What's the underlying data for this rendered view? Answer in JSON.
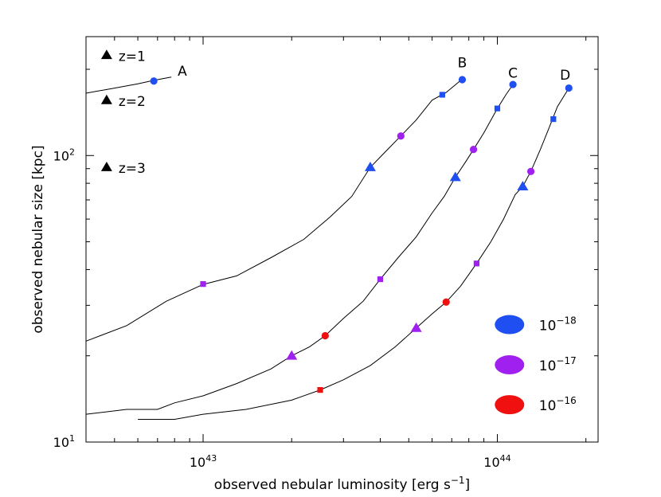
{
  "chart_data": {
    "type": "line",
    "xscale": "log",
    "yscale": "log",
    "xlim": [
      4e+42,
      2.2e+44
    ],
    "ylim": [
      10,
      260
    ],
    "xlabel": "observed nebular luminosity [erg s",
    "xlabel_sup": "−1",
    "xlabel_tail": "]",
    "ylabel": "observed nebular size [kpc]",
    "x_ticks": [
      {
        "value": 1e+43,
        "base": "10",
        "exp": "43"
      },
      {
        "value": 1e+44,
        "base": "10",
        "exp": "44"
      }
    ],
    "y_ticks": [
      {
        "value": 10,
        "base": "10",
        "exp": "1"
      },
      {
        "value": 100,
        "base": "10",
        "exp": "2"
      }
    ],
    "marker_legend": [
      {
        "label": "z=1",
        "marker": "circle",
        "x": 4.7e+42,
        "y": 224
      },
      {
        "label": "z=2",
        "marker": "square",
        "x": 4.7e+42,
        "y": 156
      },
      {
        "label": "z=3",
        "marker": "triangle",
        "x": 4.7e+42,
        "y": 91
      }
    ],
    "color_legend": [
      {
        "base": "10",
        "exp": "−18",
        "color": "#1f4ff0",
        "x": 1.1e+44,
        "y": 25.7
      },
      {
        "base": "10",
        "exp": "−17",
        "color": "#a020f0",
        "x": 1.1e+44,
        "y": 18.6
      },
      {
        "base": "10",
        "exp": "−16",
        "color": "#f01010",
        "x": 1.1e+44,
        "y": 13.5
      }
    ],
    "series": [
      {
        "name": "A",
        "label_pos": [
          8.5e+42,
          190
        ],
        "line": [
          [
            4e+42,
            165
          ],
          [
            5e+42,
            172
          ],
          [
            6e+42,
            178
          ],
          [
            6.8e+42,
            183
          ],
          [
            7.8e+42,
            188
          ]
        ],
        "markers": [
          {
            "x": 6.8e+42,
            "y": 182,
            "shape": "circle",
            "color": "#1f4ff0"
          }
        ]
      },
      {
        "name": "B",
        "label_pos": [
          7.6e+43,
          203
        ],
        "line": [
          [
            4e+42,
            22.5
          ],
          [
            5.5e+42,
            25.5
          ],
          [
            7.5e+42,
            31
          ],
          [
            1e+43,
            35.5
          ],
          [
            1.3e+43,
            38
          ],
          [
            1.7e+43,
            44
          ],
          [
            2.2e+43,
            51
          ],
          [
            2.7e+43,
            61
          ],
          [
            3.2e+43,
            72
          ],
          [
            3.7e+43,
            91
          ],
          [
            4.2e+43,
            104
          ],
          [
            4.7e+43,
            117
          ],
          [
            5.3e+43,
            133
          ],
          [
            6e+43,
            156
          ],
          [
            6.7e+43,
            166
          ],
          [
            7.6e+43,
            185
          ]
        ],
        "markers": [
          {
            "x": 1e+43,
            "y": 35.6,
            "shape": "square",
            "color": "#a020f0"
          },
          {
            "x": 3.7e+43,
            "y": 91,
            "shape": "triangle",
            "color": "#1f4ff0"
          },
          {
            "x": 4.7e+43,
            "y": 117,
            "shape": "circle",
            "color": "#a020f0"
          },
          {
            "x": 6.5e+43,
            "y": 163,
            "shape": "square",
            "color": "#1f4ff0"
          },
          {
            "x": 7.6e+43,
            "y": 184,
            "shape": "circle",
            "color": "#1f4ff0"
          }
        ]
      },
      {
        "name": "C",
        "label_pos": [
          1.13e+44,
          187
        ],
        "line": [
          [
            4e+42,
            12.5
          ],
          [
            5.5e+42,
            13
          ],
          [
            7e+42,
            13
          ],
          [
            8e+42,
            13.7
          ],
          [
            1e+43,
            14.5
          ],
          [
            1.3e+43,
            16
          ],
          [
            1.7e+43,
            18
          ],
          [
            2e+43,
            20
          ],
          [
            2.3e+43,
            21.5
          ],
          [
            2.6e+43,
            23.5
          ],
          [
            3e+43,
            27
          ],
          [
            3.5e+43,
            31
          ],
          [
            4e+43,
            37
          ],
          [
            4.6e+43,
            44
          ],
          [
            5.3e+43,
            52
          ],
          [
            6e+43,
            63
          ],
          [
            6.6e+43,
            72
          ],
          [
            7.2e+43,
            84
          ],
          [
            7.8e+43,
            95
          ],
          [
            8.3e+43,
            105
          ],
          [
            9e+43,
            120
          ],
          [
            1e+44,
            146
          ],
          [
            1.07e+44,
            163
          ],
          [
            1.13e+44,
            177
          ]
        ],
        "markers": [
          {
            "x": 2e+43,
            "y": 20,
            "shape": "triangle",
            "color": "#a020f0"
          },
          {
            "x": 2.6e+43,
            "y": 23.5,
            "shape": "circle",
            "color": "#f01010"
          },
          {
            "x": 4e+43,
            "y": 37,
            "shape": "square",
            "color": "#a020f0"
          },
          {
            "x": 7.2e+43,
            "y": 84,
            "shape": "triangle",
            "color": "#1f4ff0"
          },
          {
            "x": 8.3e+43,
            "y": 105,
            "shape": "circle",
            "color": "#a020f0"
          },
          {
            "x": 1e+44,
            "y": 146,
            "shape": "square",
            "color": "#1f4ff0"
          },
          {
            "x": 1.13e+44,
            "y": 177,
            "shape": "circle",
            "color": "#1f4ff0"
          }
        ]
      },
      {
        "name": "D",
        "label_pos": [
          1.7e+44,
          184
        ],
        "line": [
          [
            6e+42,
            12
          ],
          [
            8e+42,
            12
          ],
          [
            1e+43,
            12.5
          ],
          [
            1.4e+43,
            13
          ],
          [
            2e+43,
            14
          ],
          [
            2.5e+43,
            15.2
          ],
          [
            3e+43,
            16.5
          ],
          [
            3.7e+43,
            18.5
          ],
          [
            4.5e+43,
            21.5
          ],
          [
            5.3e+43,
            25
          ],
          [
            6e+43,
            28
          ],
          [
            6.7e+43,
            30.8
          ],
          [
            7.5e+43,
            35
          ],
          [
            8.5e+43,
            42
          ],
          [
            9.5e+43,
            50
          ],
          [
            1.05e+44,
            60
          ],
          [
            1.15e+44,
            73
          ],
          [
            1.22e+44,
            78
          ],
          [
            1.3e+44,
            88
          ],
          [
            1.4e+44,
            105
          ],
          [
            1.5e+44,
            125
          ],
          [
            1.6e+44,
            148
          ],
          [
            1.75e+44,
            172
          ]
        ],
        "markers": [
          {
            "x": 2.5e+43,
            "y": 15.2,
            "shape": "square",
            "color": "#f01010"
          },
          {
            "x": 5.3e+43,
            "y": 25,
            "shape": "triangle",
            "color": "#a020f0"
          },
          {
            "x": 6.7e+43,
            "y": 30.8,
            "shape": "circle",
            "color": "#f01010"
          },
          {
            "x": 8.5e+43,
            "y": 42,
            "shape": "square",
            "color": "#a020f0"
          },
          {
            "x": 1.22e+44,
            "y": 78,
            "shape": "triangle",
            "color": "#1f4ff0"
          },
          {
            "x": 1.3e+44,
            "y": 88,
            "shape": "circle",
            "color": "#a020f0"
          },
          {
            "x": 1.55e+44,
            "y": 134,
            "shape": "square",
            "color": "#1f4ff0"
          },
          {
            "x": 1.75e+44,
            "y": 172,
            "shape": "circle",
            "color": "#1f4ff0"
          }
        ]
      }
    ]
  }
}
